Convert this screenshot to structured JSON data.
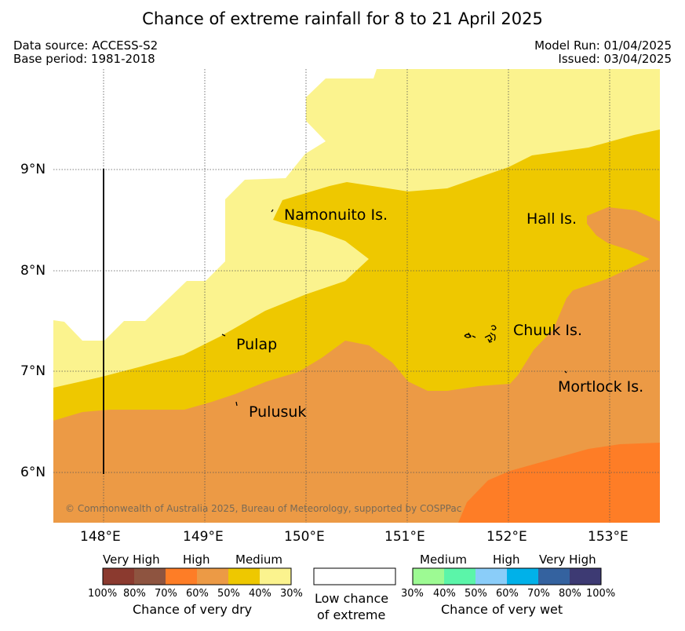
{
  "title": "Chance of extreme rainfall for 8 to 21 April 2025",
  "meta": {
    "data_source": "Data source: ACCESS-S2",
    "base_period": "Base period: 1981-2018",
    "model_run": "Model Run: 01/04/2025",
    "issued": "Issued: 03/04/2025"
  },
  "map": {
    "lat_labels": [
      "9°N",
      "8°N",
      "7°N",
      "6°N"
    ],
    "lon_labels": [
      "148°E",
      "149°E",
      "150°E",
      "151°E",
      "152°E",
      "153°E"
    ],
    "places": {
      "namonuito": "Namonuito Is.",
      "hall": "Hall Is.",
      "pulap": "Pulap",
      "chuuk": "Chuuk Is.",
      "mortlock": "Mortlock Is.",
      "pulusuk": "Pulusuk"
    },
    "copyright": "© Commonwealth of Australia 2025, Bureau of Meteorology, supported by COSPPac",
    "zone_colors": {
      "low_chance": "#ffffff",
      "dry_30_40": "#fbf38e",
      "dry_40_50": "#eec800",
      "dry_50_60": "#ec9a45",
      "dry_60_70": "#fe7d26"
    }
  },
  "legend": {
    "dry": {
      "levels": [
        "Very High",
        "High",
        "Medium"
      ],
      "colors": [
        "#8b3a2f",
        "#8e5440",
        "#fe7d26",
        "#ec9a45",
        "#eec800",
        "#fbf38e"
      ],
      "ticks": [
        "100%",
        "80%",
        "70%",
        "60%",
        "50%",
        "40%",
        "30%"
      ],
      "caption": "Chance of very dry"
    },
    "low": {
      "caption_line1": "Low chance",
      "caption_line2": "of extreme",
      "color": "#ffffff"
    },
    "wet": {
      "levels": [
        "Medium",
        "High",
        "Very High"
      ],
      "colors": [
        "#9dfa93",
        "#5bf5a9",
        "#8acdf9",
        "#00b1e9",
        "#34629f",
        "#3d3a73"
      ],
      "ticks": [
        "30%",
        "40%",
        "50%",
        "60%",
        "70%",
        "80%",
        "100%"
      ],
      "caption": "Chance of very wet"
    }
  }
}
